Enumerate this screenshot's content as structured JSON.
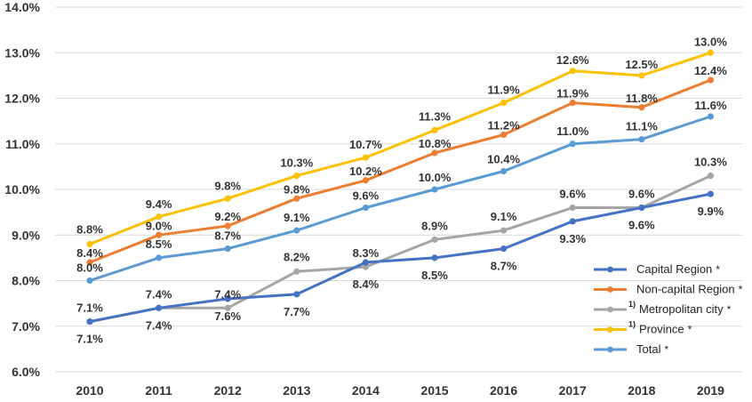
{
  "chart_data": {
    "type": "line",
    "categories": [
      "2010",
      "2011",
      "2012",
      "2013",
      "2014",
      "2015",
      "2016",
      "2017",
      "2018",
      "2019"
    ],
    "y_tick_labels": [
      "6.0%",
      "7.0%",
      "8.0%",
      "9.0%",
      "10.0%",
      "11.0%",
      "12.0%",
      "13.0%",
      "14.0%"
    ],
    "ylim": [
      6.0,
      14.0
    ],
    "y_unit": "%",
    "grid": true,
    "legend_position": "bottom-right",
    "series": [
      {
        "key": "capital",
        "name": "Capital Region",
        "superscript": "",
        "asterisk": "*",
        "color": "#4472C4",
        "values": [
          7.1,
          7.4,
          7.6,
          7.7,
          8.4,
          8.5,
          8.7,
          9.3,
          9.6,
          9.9
        ],
        "labels": [
          "7.1%",
          "7.4%",
          "7.6%",
          "7.7%",
          "8.4%",
          "8.5%",
          "8.7%",
          "9.3%",
          "9.6%",
          "9.9%"
        ]
      },
      {
        "key": "noncapital",
        "name": "Non-capital Region",
        "superscript": "",
        "asterisk": "*",
        "color": "#ED7D31",
        "values": [
          8.4,
          9.0,
          9.2,
          9.8,
          10.2,
          10.8,
          11.2,
          11.9,
          11.8,
          12.4
        ],
        "labels": [
          "8.4%",
          "9.0%",
          "9.2%",
          "9.8%",
          "10.2%",
          "10.8%",
          "11.2%",
          "11.9%",
          "11.8%",
          "12.4%"
        ]
      },
      {
        "key": "metro",
        "name": "Metropolitan city",
        "superscript": "1)",
        "asterisk": "*",
        "color": "#A5A5A5",
        "values": [
          7.1,
          7.4,
          7.4,
          8.2,
          8.3,
          8.9,
          9.1,
          9.6,
          9.6,
          10.3
        ],
        "labels": [
          "7.1%",
          "7.4%",
          "7.4%",
          "8.2%",
          "8.3%",
          "8.9%",
          "9.1%",
          "9.6%",
          "9.6%",
          "10.3%"
        ]
      },
      {
        "key": "province",
        "name": "Province",
        "superscript": "1)",
        "asterisk": "*",
        "color": "#FFC000",
        "values": [
          8.8,
          9.4,
          9.8,
          10.3,
          10.7,
          11.3,
          11.9,
          12.6,
          12.5,
          13.0
        ],
        "labels": [
          "8.8%",
          "9.4%",
          "9.8%",
          "10.3%",
          "10.7%",
          "11.3%",
          "11.9%",
          "12.6%",
          "12.5%",
          "13.0%"
        ]
      },
      {
        "key": "total",
        "name": "Total",
        "superscript": "",
        "asterisk": "*",
        "color": "#5B9BD5",
        "values": [
          8.0,
          8.5,
          8.7,
          9.1,
          9.6,
          10.0,
          10.4,
          11.0,
          11.1,
          11.6
        ],
        "labels": [
          "8.0%",
          "8.5%",
          "8.7%",
          "9.1%",
          "9.6%",
          "10.0%",
          "10.4%",
          "11.0%",
          "11.1%",
          "11.6%"
        ]
      }
    ]
  }
}
